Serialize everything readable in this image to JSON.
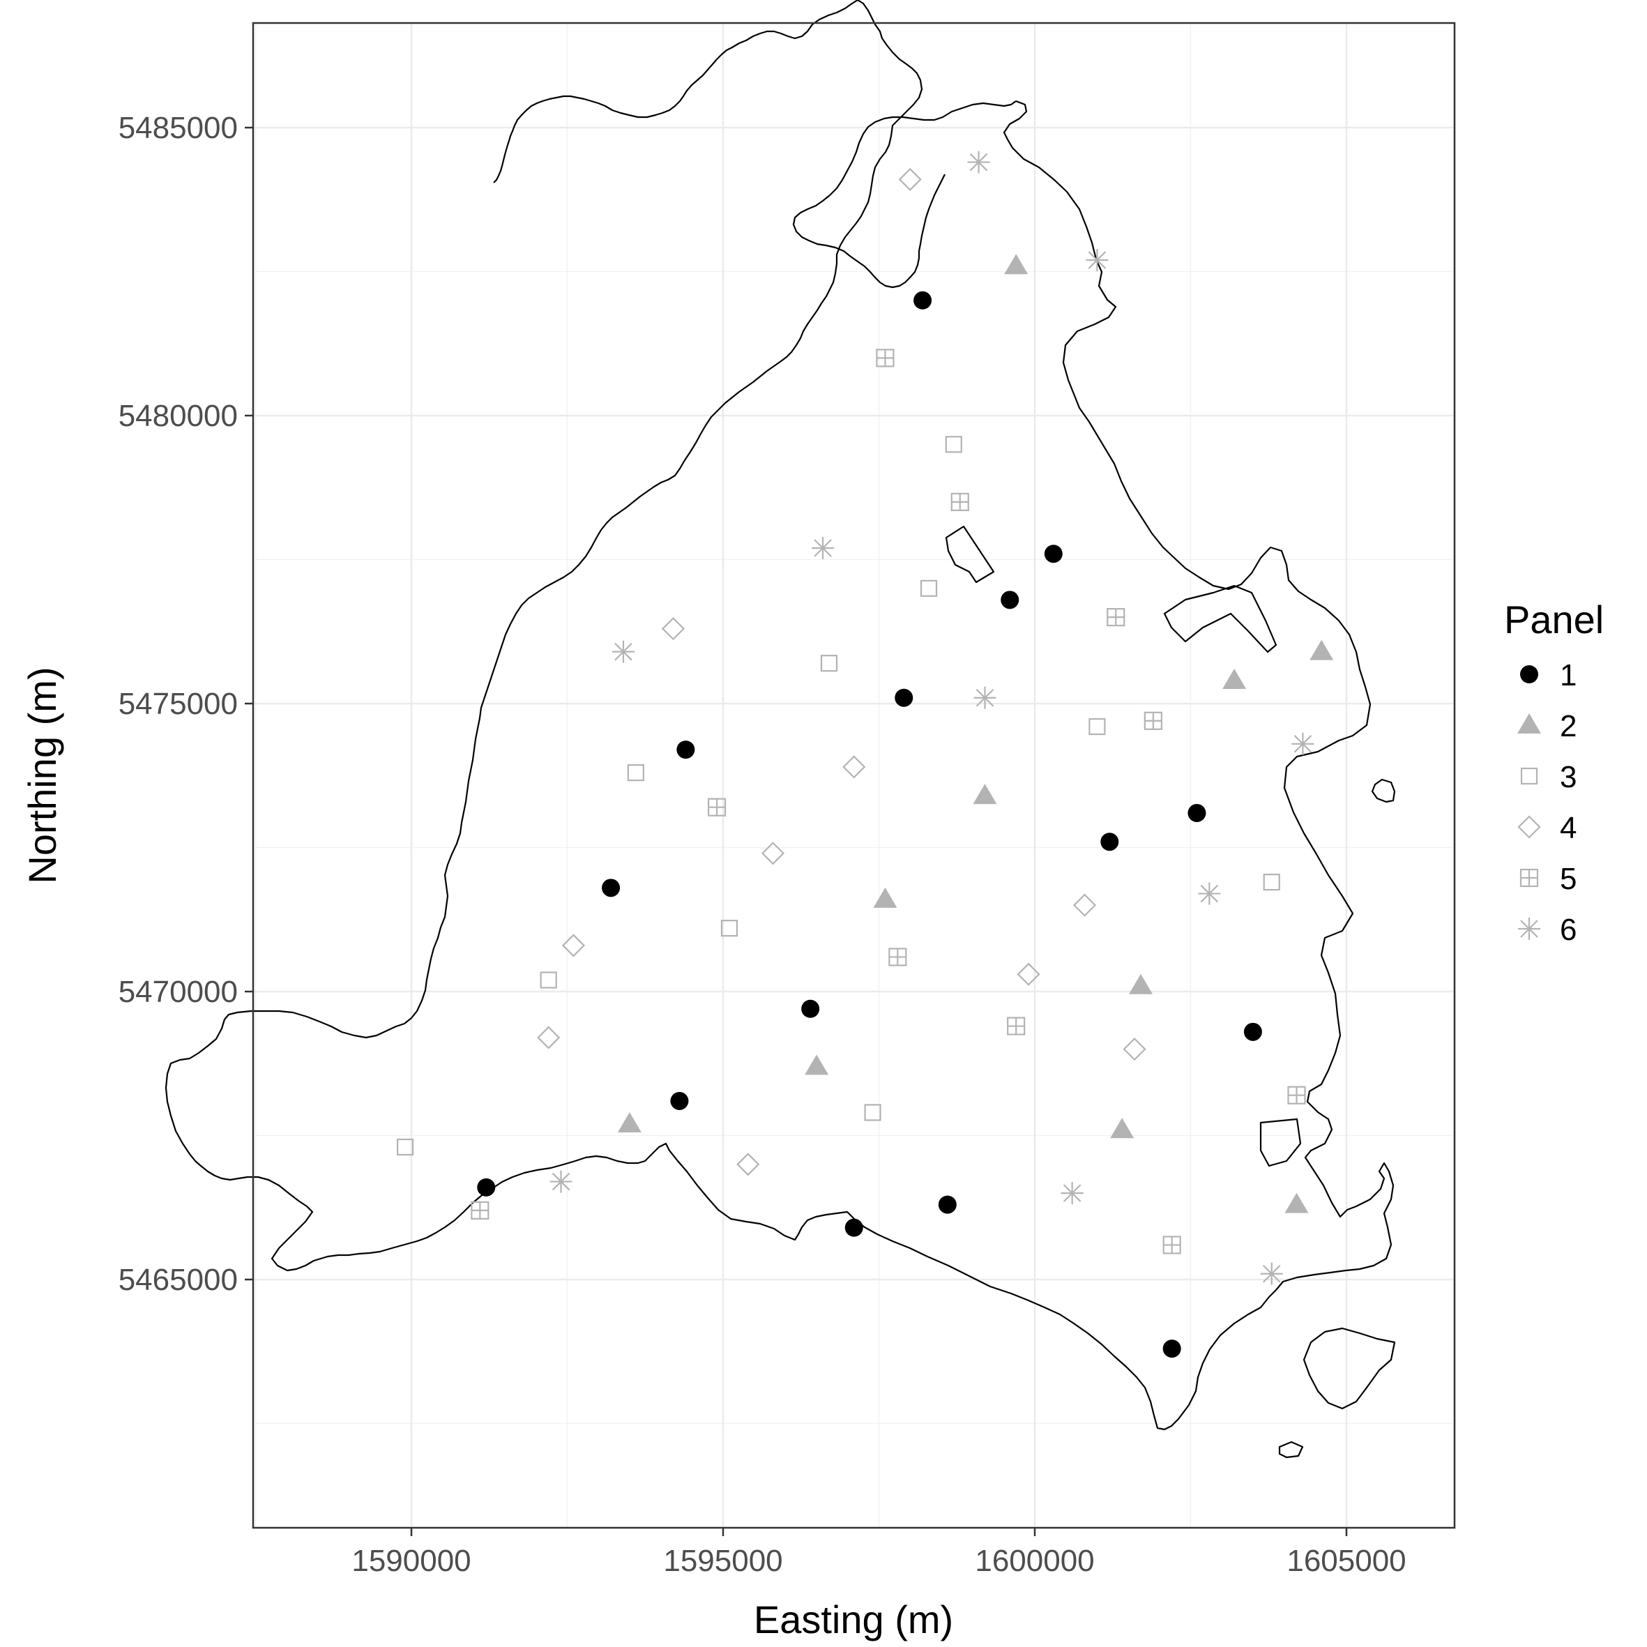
{
  "chart_data": {
    "type": "scatter",
    "xlabel": "Easting (m)",
    "ylabel": "Northing (m)",
    "xlim": [
      1587500,
      1606800
    ],
    "ylim": [
      1587500,
      1606800
    ],
    "x_ticks": [
      1590000,
      1595000,
      1600000,
      1605000
    ],
    "x_tick_labels": [
      "1590000",
      "1595000",
      "1600000",
      "1605000"
    ],
    "y_ticks": [
      5465000,
      5470000,
      5475000,
      5480000,
      5485000
    ],
    "y_tick_labels": [
      "5465000",
      "5470000",
      "5475000",
      "5480000",
      "5485000"
    ],
    "grid": true,
    "legend": {
      "title": "Panel",
      "position": "right",
      "entries": [
        "1",
        "2",
        "3",
        "4",
        "5",
        "6"
      ]
    },
    "series": [
      {
        "name": "1",
        "shape": "filled-circle",
        "color": "#000000",
        "points": [
          [
            1598200,
            5482000
          ],
          [
            1600300,
            5477600
          ],
          [
            1599600,
            5476800
          ],
          [
            1597900,
            5475100
          ],
          [
            1594400,
            5474200
          ],
          [
            1602600,
            5473100
          ],
          [
            1601200,
            5472600
          ],
          [
            1593200,
            5471800
          ],
          [
            1596400,
            5469700
          ],
          [
            1603500,
            5469300
          ],
          [
            1594300,
            5468100
          ],
          [
            1591200,
            5466600
          ],
          [
            1598600,
            5466300
          ],
          [
            1597100,
            5465900
          ],
          [
            1602200,
            5463800
          ]
        ]
      },
      {
        "name": "2",
        "shape": "filled-triangle",
        "color": "#b3b3b3",
        "points": [
          [
            1599700,
            5482600
          ],
          [
            1604600,
            5475900
          ],
          [
            1603200,
            5475400
          ],
          [
            1599200,
            5473400
          ],
          [
            1597600,
            5471600
          ],
          [
            1601700,
            5470100
          ],
          [
            1596500,
            5468700
          ],
          [
            1593500,
            5467700
          ],
          [
            1601400,
            5467600
          ],
          [
            1604200,
            5466300
          ]
        ]
      },
      {
        "name": "3",
        "shape": "open-square",
        "color": "#b3b3b3",
        "points": [
          [
            1598700,
            5479500
          ],
          [
            1598300,
            5477000
          ],
          [
            1596700,
            5475700
          ],
          [
            1601000,
            5474600
          ],
          [
            1593600,
            5473800
          ],
          [
            1603800,
            5471900
          ],
          [
            1595100,
            5471100
          ],
          [
            1592200,
            5470200
          ],
          [
            1597400,
            5467900
          ],
          [
            1589900,
            5467300
          ]
        ]
      },
      {
        "name": "4",
        "shape": "open-diamond",
        "color": "#b3b3b3",
        "points": [
          [
            1598000,
            5484100
          ],
          [
            1594200,
            5476300
          ],
          [
            1597100,
            5473900
          ],
          [
            1595800,
            5472400
          ],
          [
            1600800,
            5471500
          ],
          [
            1592600,
            5470800
          ],
          [
            1599900,
            5470300
          ],
          [
            1592200,
            5469200
          ],
          [
            1601600,
            5469000
          ],
          [
            1595400,
            5467000
          ]
        ]
      },
      {
        "name": "5",
        "shape": "boxed-plus",
        "color": "#b3b3b3",
        "points": [
          [
            1597600,
            5481000
          ],
          [
            1598800,
            5478500
          ],
          [
            1601300,
            5476500
          ],
          [
            1601900,
            5474700
          ],
          [
            1594900,
            5473200
          ],
          [
            1597800,
            5470600
          ],
          [
            1599700,
            5469400
          ],
          [
            1604200,
            5468200
          ],
          [
            1602200,
            5465600
          ],
          [
            1591100,
            5466200
          ]
        ]
      },
      {
        "name": "6",
        "shape": "asterisk",
        "color": "#b3b3b3",
        "points": [
          [
            1599100,
            5484400
          ],
          [
            1601000,
            5482700
          ],
          [
            1596600,
            5477700
          ],
          [
            1593400,
            5475900
          ],
          [
            1599200,
            5475100
          ],
          [
            1604300,
            5474300
          ],
          [
            1602800,
            5471700
          ],
          [
            1592400,
            5466700
          ],
          [
            1600600,
            5466500
          ],
          [
            1603800,
            5465100
          ]
        ]
      }
    ]
  }
}
